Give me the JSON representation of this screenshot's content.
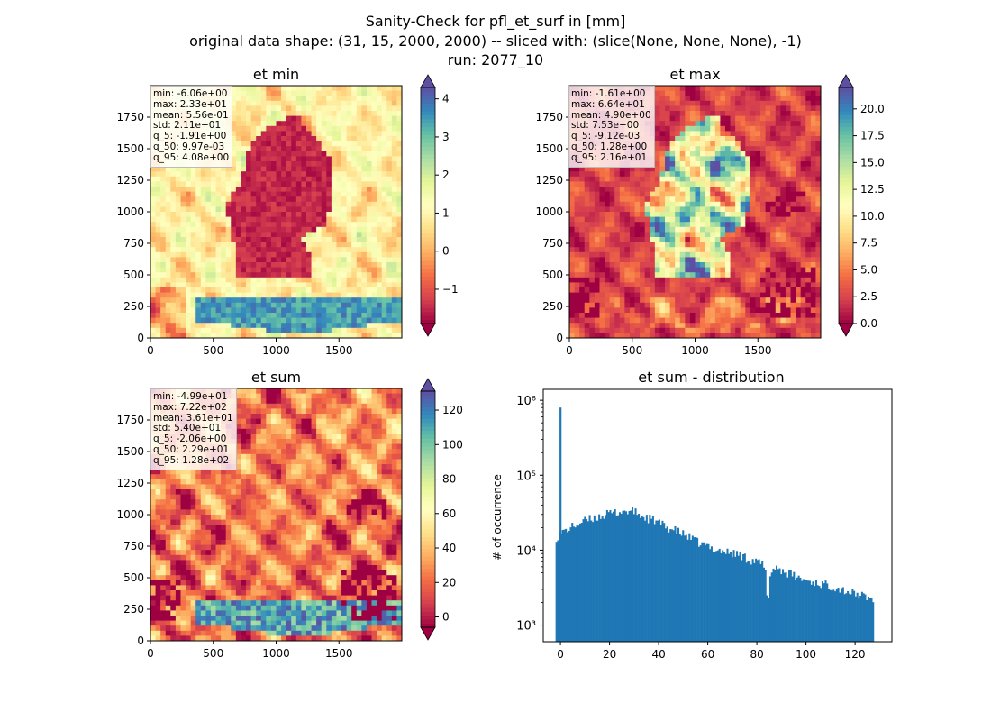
{
  "figure": {
    "title_lines": [
      "Sanity-Check for pfl_et_surf in [mm]",
      "original data shape: (31, 15, 2000, 2000) -- sliced with: (slice(None, None, None), -1)",
      "run: 2077_10"
    ]
  },
  "chart_data": [
    {
      "type": "heatmap",
      "title": "et min",
      "colormap": "Spectral",
      "colorbar": {
        "min": -1.9,
        "max": 4.3,
        "ticks": [
          -1,
          0,
          1,
          2,
          3,
          4
        ],
        "extend": "both"
      },
      "xlim": [
        0,
        2000
      ],
      "ylim": [
        0,
        2000
      ],
      "xticks": [
        0,
        500,
        1000,
        1500
      ],
      "yticks": [
        0,
        250,
        500,
        750,
        1000,
        1250,
        1500,
        1750
      ],
      "stats": [
        "min: -6.06e+00",
        "max: 2.33e+01",
        "mean: 5.56e-01",
        "std: 2.11e+01",
        "q_5: -1.91e+00",
        "q_50: 9.97e-03",
        "q_95: 4.08e+00"
      ]
    },
    {
      "type": "heatmap",
      "title": "et max",
      "colormap": "Spectral",
      "colorbar": {
        "min": 0,
        "max": 22,
        "ticks": [
          0.0,
          2.5,
          5.0,
          7.5,
          10.0,
          12.5,
          15.0,
          17.5,
          20.0
        ],
        "extend": "both"
      },
      "xlim": [
        0,
        2000
      ],
      "ylim": [
        0,
        2000
      ],
      "xticks": [
        0,
        500,
        1000,
        1500
      ],
      "yticks": [
        0,
        250,
        500,
        750,
        1000,
        1250,
        1500,
        1750
      ],
      "stats": [
        "min: -1.61e+00",
        "max: 6.64e+01",
        "mean: 4.90e+00",
        "std: 7.53e+00",
        "q_5: -9.12e-03",
        "q_50: 1.28e+00",
        "q_95: 2.16e+01"
      ]
    },
    {
      "type": "heatmap",
      "title": "et sum",
      "colormap": "Spectral",
      "colorbar": {
        "min": -6,
        "max": 131,
        "ticks": [
          0,
          20,
          40,
          60,
          80,
          100,
          120
        ],
        "extend": "both"
      },
      "xlim": [
        0,
        2000
      ],
      "ylim": [
        0,
        2000
      ],
      "xticks": [
        0,
        500,
        1000,
        1500
      ],
      "yticks": [
        0,
        250,
        500,
        750,
        1000,
        1250,
        1500,
        1750
      ],
      "stats": [
        "min: -4.99e+01",
        "max: 7.22e+02",
        "mean: 3.61e+01",
        "std: 5.40e+01",
        "q_5: -2.06e+00",
        "q_50: 2.29e+01",
        "q_95: 1.28e+02"
      ]
    },
    {
      "type": "bar",
      "title": "et sum - distribution",
      "xlabel": "",
      "ylabel": "# of occurrence",
      "yscale": "log",
      "xlim": [
        -7,
        135
      ],
      "ylim": [
        600,
        1400000
      ],
      "xticks": [
        0,
        20,
        40,
        60,
        80,
        100,
        120
      ],
      "yticks": [
        1000,
        10000,
        100000,
        1000000
      ],
      "ytick_labels": [
        "10³",
        "10⁴",
        "10⁵",
        "10⁶"
      ],
      "color": "#1f77b4",
      "spike": {
        "x": 0,
        "value": 800000
      },
      "bins_start": -2,
      "bins_end": 127,
      "bin_width": 0.645,
      "envelope": [
        [
          -2,
          15000
        ],
        [
          0,
          17000
        ],
        [
          5,
          21000
        ],
        [
          10,
          25000
        ],
        [
          15,
          28000
        ],
        [
          20,
          31000
        ],
        [
          25,
          33000
        ],
        [
          30,
          33000
        ],
        [
          33,
          28000
        ],
        [
          38,
          25000
        ],
        [
          42,
          21000
        ],
        [
          47,
          18000
        ],
        [
          52,
          15000
        ],
        [
          57,
          12000
        ],
        [
          62,
          10500
        ],
        [
          67,
          9500
        ],
        [
          72,
          8800
        ],
        [
          77,
          7500
        ],
        [
          82,
          6500
        ],
        [
          84,
          4000
        ],
        [
          87,
          6000
        ],
        [
          92,
          5000
        ],
        [
          97,
          4200
        ],
        [
          102,
          3800
        ],
        [
          107,
          3500
        ],
        [
          112,
          3200
        ],
        [
          117,
          2800
        ],
        [
          122,
          2500
        ],
        [
          127,
          2200
        ]
      ]
    }
  ],
  "colors": {
    "bar": "#1f77b4",
    "axis": "#000000",
    "background": "#ffffff"
  }
}
